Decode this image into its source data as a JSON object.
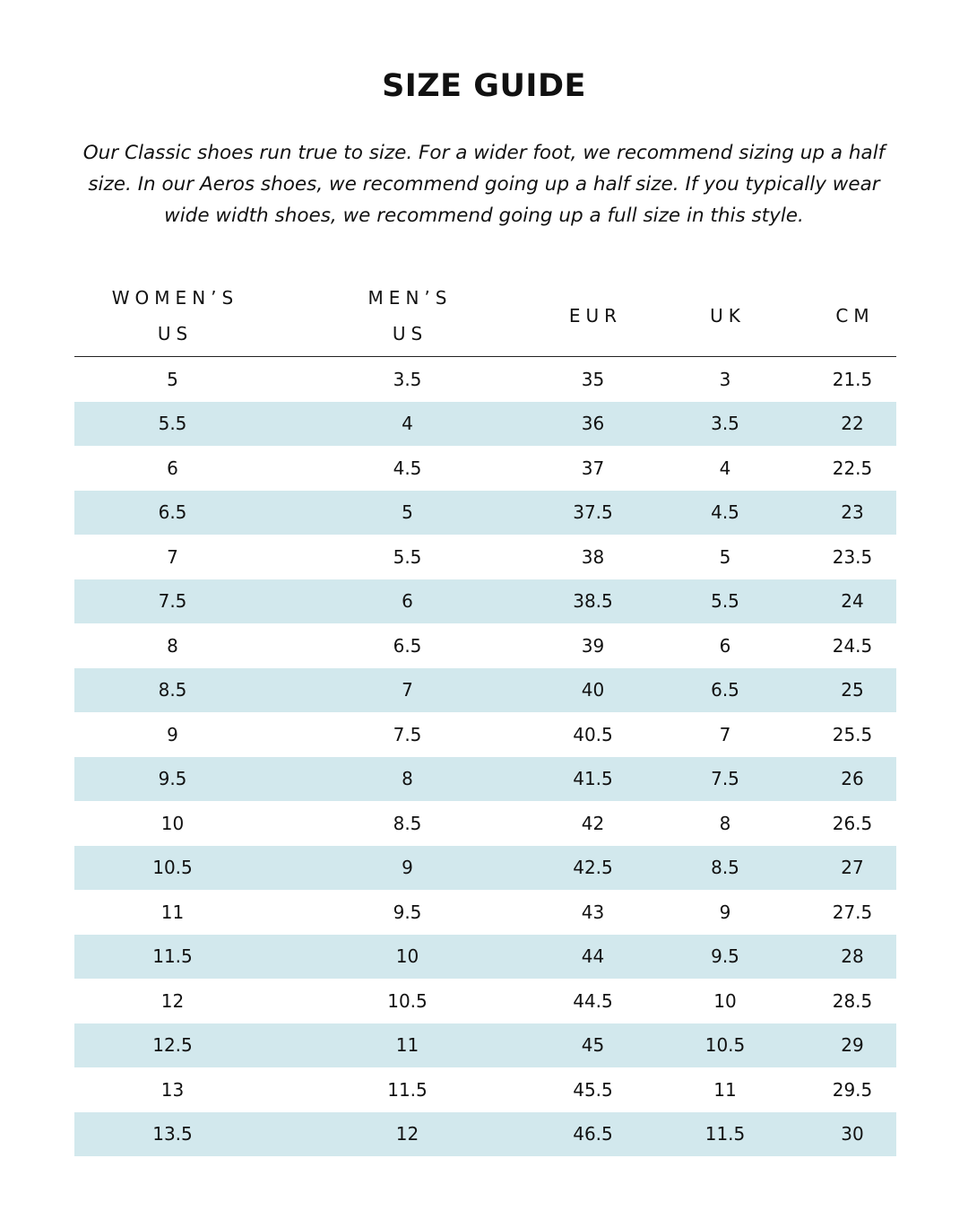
{
  "title": "SIZE GUIDE",
  "intro": "Our Classic shoes run true to size. For a wider foot, we recommend sizing up a half size. In our Aeros shoes, we recommend going up a half size. If you typically wear wide width shoes, we recommend going up a full size in this style.",
  "colors": {
    "stripe": "#d2e8ed",
    "text": "#111111",
    "rule": "#222222"
  },
  "table": {
    "headers": [
      [
        "WOMEN’S",
        "US"
      ],
      [
        "MEN’S",
        "US"
      ],
      [
        "EUR"
      ],
      [
        "UK"
      ],
      [
        "CM"
      ]
    ],
    "rows": [
      [
        "5",
        "3.5",
        "35",
        "3",
        "21.5"
      ],
      [
        "5.5",
        "4",
        "36",
        "3.5",
        "22"
      ],
      [
        "6",
        "4.5",
        "37",
        "4",
        "22.5"
      ],
      [
        "6.5",
        "5",
        "37.5",
        "4.5",
        "23"
      ],
      [
        "7",
        "5.5",
        "38",
        "5",
        "23.5"
      ],
      [
        "7.5",
        "6",
        "38.5",
        "5.5",
        "24"
      ],
      [
        "8",
        "6.5",
        "39",
        "6",
        "24.5"
      ],
      [
        "8.5",
        "7",
        "40",
        "6.5",
        "25"
      ],
      [
        "9",
        "7.5",
        "40.5",
        "7",
        "25.5"
      ],
      [
        "9.5",
        "8",
        "41.5",
        "7.5",
        "26"
      ],
      [
        "10",
        "8.5",
        "42",
        "8",
        "26.5"
      ],
      [
        "10.5",
        "9",
        "42.5",
        "8.5",
        "27"
      ],
      [
        "11",
        "9.5",
        "43",
        "9",
        "27.5"
      ],
      [
        "11.5",
        "10",
        "44",
        "9.5",
        "28"
      ],
      [
        "12",
        "10.5",
        "44.5",
        "10",
        "28.5"
      ],
      [
        "12.5",
        "11",
        "45",
        "10.5",
        "29"
      ],
      [
        "13",
        "11.5",
        "45.5",
        "11",
        "29.5"
      ],
      [
        "13.5",
        "12",
        "46.5",
        "11.5",
        "30"
      ]
    ]
  }
}
